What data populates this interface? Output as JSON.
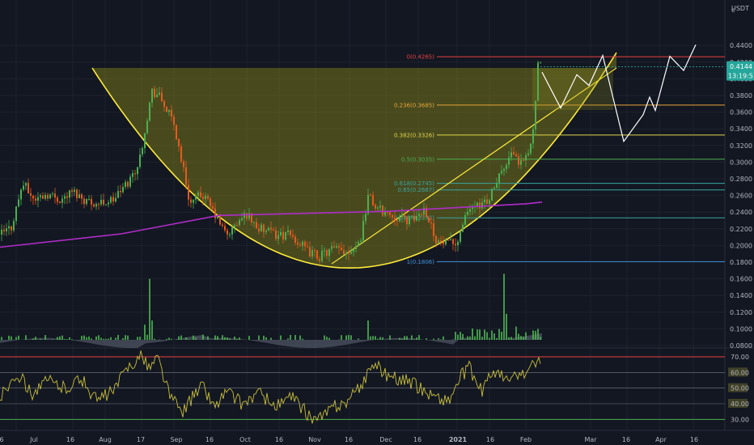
{
  "header": {
    "currency": "USDT",
    "corner_icon": "settings-c-icon"
  },
  "colors": {
    "background": "#131722",
    "grid": "#1e222d",
    "up": "#4caf50",
    "down": "#e55a1f",
    "cup": "#ffeb3b",
    "pattern_fill": "#8a8a1a",
    "ma": "#b02dc8",
    "volume": "#4caf50",
    "volume_ma": "#5d6373",
    "rsi": "#c8bf3c",
    "rsi_70": "#e84040",
    "rsi_30": "#4caf50",
    "price_tag": "#26a69a"
  },
  "price_axis": {
    "ticks": [
      "0.4400",
      "0.4200",
      "0.4000",
      "0.3800",
      "0.3600",
      "0.3400",
      "0.3200",
      "0.3000",
      "0.2800",
      "0.2600",
      "0.2400",
      "0.2200",
      "0.2000",
      "0.1800",
      "0.1600",
      "0.1400",
      "0.1200",
      "0.1000",
      "0.0800"
    ],
    "current_price": "0.4144",
    "countdown": "13:19:51"
  },
  "rsi_axis": {
    "ticks": [
      "70.00",
      "60.00",
      "50.00",
      "40.00",
      "30.00"
    ]
  },
  "time_axis": {
    "ticks": [
      "6",
      "Jul",
      "16",
      "Aug",
      "17",
      "Sep",
      "16",
      "Oct",
      "16",
      "Nov",
      "16",
      "Dec",
      "16",
      "2021",
      "16",
      "Feb",
      "Mar",
      "16",
      "Apr",
      "16"
    ]
  },
  "fibonacci": [
    {
      "label": "0(0.4265)",
      "price": 0.4265,
      "color": "#e84040"
    },
    {
      "label": "0.236(0.3685)",
      "price": 0.3685,
      "color": "#e8a53a"
    },
    {
      "label": "0.382(0.3326)",
      "price": 0.3326,
      "color": "#e0d44a"
    },
    {
      "label": "0.5(0.3035)",
      "price": 0.3035,
      "color": "#4caf50"
    },
    {
      "label": "0.618(0.2745)",
      "price": 0.2745,
      "color": "#3aa5a0"
    },
    {
      "label": "0.65(0.2667)",
      "price": 0.2667,
      "color": "#3aa5a0"
    },
    {
      "label": "0.786(0.2332)",
      "price": 0.2332,
      "color": "#3aa5a0"
    },
    {
      "label": "1(0.1806)",
      "price": 0.1806,
      "color": "#3d8fd6"
    }
  ],
  "chart_data": {
    "type": "candlestick",
    "symbol_quote": "USDT",
    "x_range": [
      "Jun 6",
      "Apr 16"
    ],
    "ylim": [
      0.07,
      0.455
    ],
    "key_levels": {
      "rim": 0.413,
      "cup_bottom": 0.173,
      "last": 0.4144
    },
    "moving_average": [
      [
        0,
        0.198
      ],
      [
        150,
        0.214
      ],
      [
        270,
        0.236
      ],
      [
        480,
        0.241
      ],
      [
        650,
        0.25
      ],
      [
        670,
        0.252
      ]
    ],
    "projection_path": [
      [
        670,
        0.408
      ],
      [
        693,
        0.365
      ],
      [
        713,
        0.405
      ],
      [
        728,
        0.392
      ],
      [
        745,
        0.428
      ],
      [
        771,
        0.325
      ],
      [
        795,
        0.357
      ],
      [
        803,
        0.378
      ],
      [
        810,
        0.362
      ],
      [
        828,
        0.427
      ],
      [
        845,
        0.41
      ],
      [
        860,
        0.441
      ]
    ],
    "rsi_levels": [
      70,
      60,
      50,
      40,
      30
    ]
  }
}
